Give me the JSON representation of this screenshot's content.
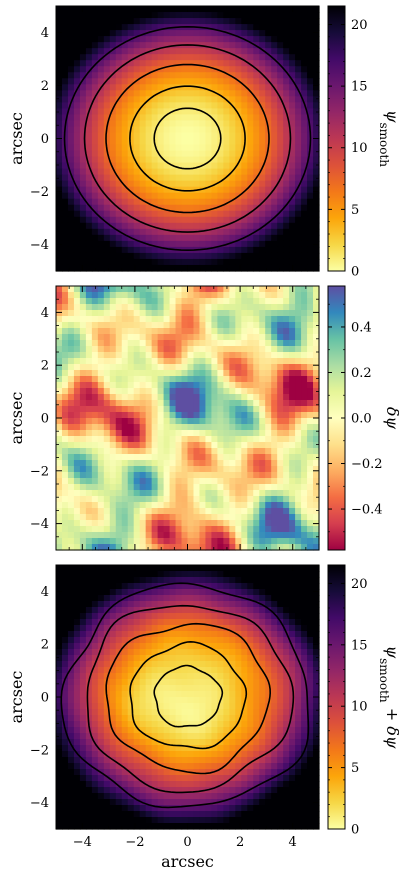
{
  "chart_data": [
    {
      "type": "heatmap",
      "colormap": "inferno_r",
      "xlim": [
        -5,
        5
      ],
      "ylim": [
        -5,
        5
      ],
      "ylabel": "arcsec",
      "yticks": [
        -4,
        -2,
        0,
        2,
        4
      ],
      "ytick_labels": [
        "−4",
        "−2",
        "0",
        "2",
        "4"
      ],
      "colorbar": {
        "label": "ψ_smooth",
        "label_main": "ψ",
        "label_sub": "smooth",
        "range": [
          0,
          21.5
        ],
        "ticks": [
          0,
          5,
          10,
          15,
          20
        ],
        "tick_labels": [
          "0",
          "5",
          "10",
          "15",
          "20"
        ]
      },
      "contour_levels": [
        1.2,
        3.6,
        7.2,
        11.5,
        16.4
      ]
    },
    {
      "type": "heatmap",
      "colormap": "Spectral",
      "xlim": [
        -5,
        5
      ],
      "ylim": [
        -5,
        5
      ],
      "ylabel": "arcsec",
      "yticks": [
        -4,
        -2,
        0,
        2,
        4
      ],
      "ytick_labels": [
        "−4",
        "−2",
        "0",
        "2",
        "4"
      ],
      "colorbar": {
        "label": "δψ",
        "range": [
          -0.58,
          0.58
        ],
        "ticks": [
          -0.4,
          -0.2,
          0.0,
          0.2,
          0.4
        ],
        "tick_labels": [
          "−0.4",
          "−0.2",
          "0.0",
          "0.2",
          "0.4"
        ]
      }
    },
    {
      "type": "heatmap",
      "colormap": "inferno_r",
      "xlim": [
        -5,
        5
      ],
      "ylim": [
        -5,
        5
      ],
      "xlabel": "arcsec",
      "ylabel": "arcsec",
      "xticks": [
        -4,
        -2,
        0,
        2,
        4
      ],
      "xtick_labels": [
        "−4",
        "−2",
        "0",
        "2",
        "4"
      ],
      "yticks": [
        -4,
        -2,
        0,
        2,
        4
      ],
      "ytick_labels": [
        "−4",
        "−2",
        "0",
        "2",
        "4"
      ],
      "colorbar": {
        "label": "ψ_smooth + δψ",
        "label_main": "ψ",
        "label_sub": "smooth",
        "label_tail": " + δψ",
        "range": [
          0,
          21.5
        ],
        "ticks": [
          0,
          5,
          10,
          15,
          20
        ],
        "tick_labels": [
          "0",
          "5",
          "10",
          "15",
          "20"
        ]
      },
      "contour_levels": [
        1.2,
        3.6,
        7.2,
        11.5,
        16.4
      ]
    }
  ]
}
